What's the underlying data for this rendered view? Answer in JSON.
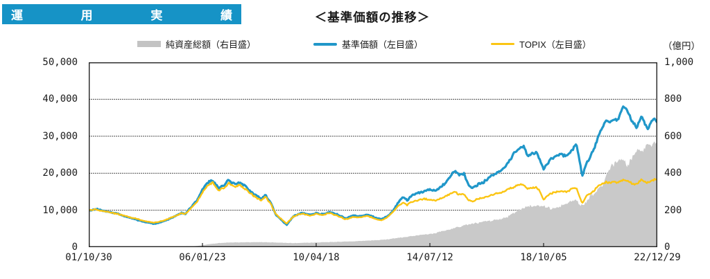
{
  "banner": {
    "label": "運用実績",
    "chars": [
      "運",
      "用",
      "実",
      "績"
    ],
    "bg_color": "#1693c6"
  },
  "title": "＜基準価額の推移＞",
  "legend": [
    {
      "label": "純資産総額（右目盛）",
      "color": "#c3c3c3",
      "type": "area"
    },
    {
      "label": "基準価額（左目盛）",
      "color": "#2097c9",
      "type": "line"
    },
    {
      "label": "TOPIX（左目盛）",
      "color": "#fbc513",
      "type": "line"
    }
  ],
  "right_axis_unit": "（億円）",
  "left_axis_ticks": [
    "50,000",
    "40,000",
    "30,000",
    "20,000",
    "10,000",
    "0"
  ],
  "right_axis_ticks": [
    "1,000",
    "800",
    "600",
    "400",
    "200",
    "0"
  ],
  "x_axis_labels": [
    "01/10/30",
    "06/01/23",
    "10/04/18",
    "14/07/12",
    "18/10/05",
    "22/12/29"
  ],
  "chart_data": {
    "type": "line",
    "note": "x values are fractions of the horizontal axis; date ticks are evenly spaced from 01/10/30 to 22/12/29",
    "x_tick_positions": [
      0,
      0.2,
      0.4,
      0.6,
      0.8,
      1.0
    ],
    "x_tick_labels": [
      "01/10/30",
      "06/01/23",
      "10/04/18",
      "14/07/12",
      "18/10/05",
      "22/12/29"
    ],
    "left_axis": {
      "min": 0,
      "max": 50000,
      "ticks": [
        0,
        10000,
        20000,
        30000,
        40000,
        50000
      ]
    },
    "right_axis": {
      "min": 0,
      "max": 1000,
      "ticks": [
        0,
        200,
        400,
        600,
        800,
        1000
      ],
      "unit": "億円"
    },
    "grid": "horizontal",
    "legend_position": "top",
    "series": [
      {
        "name": "純資産総額（右目盛）",
        "axis": "right",
        "type": "area",
        "color": "#c9c9c9",
        "points": [
          [
            0,
            1
          ],
          [
            0.05,
            2
          ],
          [
            0.1,
            2
          ],
          [
            0.15,
            3
          ],
          [
            0.185,
            5
          ],
          [
            0.2,
            10
          ],
          [
            0.21,
            16
          ],
          [
            0.23,
            22
          ],
          [
            0.25,
            25
          ],
          [
            0.27,
            26
          ],
          [
            0.3,
            27
          ],
          [
            0.32,
            26
          ],
          [
            0.33,
            25
          ],
          [
            0.36,
            22
          ],
          [
            0.4,
            25
          ],
          [
            0.43,
            28
          ],
          [
            0.46,
            31
          ],
          [
            0.49,
            35
          ],
          [
            0.51,
            38
          ],
          [
            0.53,
            44
          ],
          [
            0.55,
            52
          ],
          [
            0.57,
            60
          ],
          [
            0.59,
            68
          ],
          [
            0.61,
            76
          ],
          [
            0.63,
            92
          ],
          [
            0.645,
            105
          ],
          [
            0.66,
            118
          ],
          [
            0.675,
            126
          ],
          [
            0.69,
            134
          ],
          [
            0.705,
            142
          ],
          [
            0.72,
            150
          ],
          [
            0.735,
            162
          ],
          [
            0.75,
            190
          ],
          [
            0.765,
            215
          ],
          [
            0.775,
            222
          ],
          [
            0.79,
            222
          ],
          [
            0.8,
            220
          ],
          [
            0.815,
            205
          ],
          [
            0.825,
            212
          ],
          [
            0.84,
            235
          ],
          [
            0.85,
            248
          ],
          [
            0.858,
            252
          ],
          [
            0.863,
            235
          ],
          [
            0.868,
            225
          ],
          [
            0.874,
            240
          ],
          [
            0.88,
            268
          ],
          [
            0.89,
            290
          ],
          [
            0.899,
            330
          ],
          [
            0.905,
            345
          ],
          [
            0.912,
            400
          ],
          [
            0.92,
            440
          ],
          [
            0.929,
            462
          ],
          [
            0.939,
            476
          ],
          [
            0.947,
            438
          ],
          [
            0.953,
            470
          ],
          [
            0.96,
            505
          ],
          [
            0.968,
            532
          ],
          [
            0.975,
            520
          ],
          [
            0.98,
            548
          ],
          [
            0.985,
            562
          ],
          [
            0.99,
            540
          ],
          [
            0.995,
            560
          ],
          [
            1,
            570
          ]
        ]
      },
      {
        "name": "基準価額（左目盛）",
        "axis": "left",
        "type": "line",
        "color": "#2097c9",
        "points": [
          [
            0,
            9900
          ],
          [
            0.012,
            10300
          ],
          [
            0.03,
            9700
          ],
          [
            0.05,
            9100
          ],
          [
            0.065,
            8300
          ],
          [
            0.08,
            7600
          ],
          [
            0.1,
            6800
          ],
          [
            0.115,
            6300
          ],
          [
            0.13,
            6900
          ],
          [
            0.15,
            8200
          ],
          [
            0.163,
            9300
          ],
          [
            0.17,
            9000
          ],
          [
            0.18,
            10800
          ],
          [
            0.19,
            12500
          ],
          [
            0.2,
            15500
          ],
          [
            0.212,
            17900
          ],
          [
            0.218,
            18200
          ],
          [
            0.228,
            15900
          ],
          [
            0.24,
            17000
          ],
          [
            0.246,
            18200
          ],
          [
            0.252,
            17400
          ],
          [
            0.258,
            17000
          ],
          [
            0.265,
            17600
          ],
          [
            0.272,
            16800
          ],
          [
            0.277,
            16200
          ],
          [
            0.288,
            14600
          ],
          [
            0.295,
            13900
          ],
          [
            0.303,
            13000
          ],
          [
            0.311,
            14100
          ],
          [
            0.32,
            12000
          ],
          [
            0.329,
            8800
          ],
          [
            0.34,
            7200
          ],
          [
            0.348,
            6000
          ],
          [
            0.36,
            8400
          ],
          [
            0.375,
            9300
          ],
          [
            0.39,
            8700
          ],
          [
            0.4,
            9200
          ],
          [
            0.41,
            8900
          ],
          [
            0.425,
            9500
          ],
          [
            0.44,
            8600
          ],
          [
            0.452,
            7800
          ],
          [
            0.465,
            8500
          ],
          [
            0.475,
            8300
          ],
          [
            0.49,
            8800
          ],
          [
            0.505,
            7900
          ],
          [
            0.515,
            7600
          ],
          [
            0.525,
            8300
          ],
          [
            0.533,
            9500
          ],
          [
            0.545,
            12200
          ],
          [
            0.553,
            13700
          ],
          [
            0.56,
            12600
          ],
          [
            0.568,
            13900
          ],
          [
            0.578,
            14600
          ],
          [
            0.59,
            15200
          ],
          [
            0.6,
            15600
          ],
          [
            0.61,
            15300
          ],
          [
            0.62,
            16400
          ],
          [
            0.632,
            18200
          ],
          [
            0.643,
            20700
          ],
          [
            0.652,
            19600
          ],
          [
            0.66,
            19900
          ],
          [
            0.668,
            16800
          ],
          [
            0.675,
            15900
          ],
          [
            0.685,
            17000
          ],
          [
            0.695,
            17600
          ],
          [
            0.705,
            18900
          ],
          [
            0.715,
            19800
          ],
          [
            0.725,
            20600
          ],
          [
            0.735,
            22200
          ],
          [
            0.748,
            25300
          ],
          [
            0.758,
            26800
          ],
          [
            0.765,
            27300
          ],
          [
            0.772,
            24600
          ],
          [
            0.78,
            25400
          ],
          [
            0.787,
            25600
          ],
          [
            0.793,
            23800
          ],
          [
            0.8,
            21000
          ],
          [
            0.81,
            23400
          ],
          [
            0.82,
            24600
          ],
          [
            0.83,
            25100
          ],
          [
            0.84,
            24600
          ],
          [
            0.85,
            26300
          ],
          [
            0.858,
            27800
          ],
          [
            0.863,
            23500
          ],
          [
            0.868,
            19200
          ],
          [
            0.874,
            22300
          ],
          [
            0.882,
            24300
          ],
          [
            0.89,
            27200
          ],
          [
            0.899,
            31000
          ],
          [
            0.906,
            33200
          ],
          [
            0.911,
            34400
          ],
          [
            0.917,
            33800
          ],
          [
            0.923,
            34600
          ],
          [
            0.93,
            34300
          ],
          [
            0.936,
            36500
          ],
          [
            0.94,
            38200
          ],
          [
            0.945,
            37300
          ],
          [
            0.95,
            36000
          ],
          [
            0.955,
            34200
          ],
          [
            0.96,
            33300
          ],
          [
            0.963,
            31900
          ],
          [
            0.968,
            34000
          ],
          [
            0.972,
            35400
          ],
          [
            0.978,
            33400
          ],
          [
            0.984,
            31800
          ],
          [
            0.99,
            34200
          ],
          [
            0.995,
            34800
          ],
          [
            1,
            33900
          ]
        ]
      },
      {
        "name": "TOPIX（左目盛）",
        "axis": "left",
        "type": "line",
        "color": "#fbc513",
        "points": [
          [
            0,
            10000
          ],
          [
            0.012,
            10200
          ],
          [
            0.03,
            9600
          ],
          [
            0.05,
            9000
          ],
          [
            0.065,
            8400
          ],
          [
            0.08,
            7800
          ],
          [
            0.1,
            7000
          ],
          [
            0.115,
            6600
          ],
          [
            0.13,
            7100
          ],
          [
            0.15,
            8300
          ],
          [
            0.163,
            9200
          ],
          [
            0.17,
            9000
          ],
          [
            0.18,
            10600
          ],
          [
            0.19,
            12100
          ],
          [
            0.2,
            14900
          ],
          [
            0.212,
            17100
          ],
          [
            0.218,
            17400
          ],
          [
            0.228,
            15300
          ],
          [
            0.24,
            16300
          ],
          [
            0.246,
            17400
          ],
          [
            0.252,
            16700
          ],
          [
            0.258,
            16300
          ],
          [
            0.265,
            16900
          ],
          [
            0.272,
            16100
          ],
          [
            0.277,
            15600
          ],
          [
            0.288,
            14100
          ],
          [
            0.295,
            13400
          ],
          [
            0.303,
            12600
          ],
          [
            0.311,
            13600
          ],
          [
            0.32,
            11700
          ],
          [
            0.329,
            8900
          ],
          [
            0.34,
            7400
          ],
          [
            0.348,
            6400
          ],
          [
            0.36,
            8300
          ],
          [
            0.375,
            9100
          ],
          [
            0.39,
            8500
          ],
          [
            0.4,
            9000
          ],
          [
            0.41,
            8700
          ],
          [
            0.425,
            9200
          ],
          [
            0.44,
            8300
          ],
          [
            0.452,
            7500
          ],
          [
            0.465,
            8200
          ],
          [
            0.475,
            8000
          ],
          [
            0.49,
            8500
          ],
          [
            0.505,
            7600
          ],
          [
            0.515,
            7300
          ],
          [
            0.525,
            8000
          ],
          [
            0.533,
            9200
          ],
          [
            0.545,
            11200
          ],
          [
            0.553,
            12200
          ],
          [
            0.56,
            11400
          ],
          [
            0.568,
            12300
          ],
          [
            0.578,
            12700
          ],
          [
            0.59,
            13100
          ],
          [
            0.6,
            12800
          ],
          [
            0.61,
            12600
          ],
          [
            0.62,
            13300
          ],
          [
            0.632,
            14100
          ],
          [
            0.643,
            14900
          ],
          [
            0.652,
            14200
          ],
          [
            0.66,
            14400
          ],
          [
            0.668,
            12800
          ],
          [
            0.675,
            12300
          ],
          [
            0.685,
            13100
          ],
          [
            0.695,
            13400
          ],
          [
            0.705,
            14000
          ],
          [
            0.715,
            14400
          ],
          [
            0.725,
            14700
          ],
          [
            0.735,
            15400
          ],
          [
            0.748,
            16300
          ],
          [
            0.758,
            16800
          ],
          [
            0.765,
            16900
          ],
          [
            0.772,
            15700
          ],
          [
            0.78,
            16100
          ],
          [
            0.787,
            16200
          ],
          [
            0.793,
            15100
          ],
          [
            0.8,
            12900
          ],
          [
            0.81,
            14300
          ],
          [
            0.82,
            14900
          ],
          [
            0.83,
            15200
          ],
          [
            0.84,
            15000
          ],
          [
            0.85,
            15700
          ],
          [
            0.858,
            16000
          ],
          [
            0.863,
            13800
          ],
          [
            0.868,
            11800
          ],
          [
            0.874,
            13600
          ],
          [
            0.882,
            14500
          ],
          [
            0.89,
            15500
          ],
          [
            0.899,
            16800
          ],
          [
            0.906,
            17400
          ],
          [
            0.911,
            17600
          ],
          [
            0.917,
            17300
          ],
          [
            0.923,
            17700
          ],
          [
            0.93,
            17500
          ],
          [
            0.936,
            18000
          ],
          [
            0.94,
            18300
          ],
          [
            0.945,
            18000
          ],
          [
            0.95,
            17700
          ],
          [
            0.955,
            17300
          ],
          [
            0.96,
            17100
          ],
          [
            0.963,
            16900
          ],
          [
            0.968,
            17600
          ],
          [
            0.972,
            18400
          ],
          [
            0.978,
            17800
          ],
          [
            0.984,
            17400
          ],
          [
            0.99,
            18000
          ],
          [
            0.995,
            18300
          ],
          [
            1,
            18200
          ]
        ]
      }
    ]
  }
}
